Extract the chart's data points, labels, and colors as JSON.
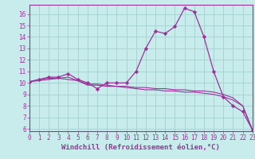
{
  "xlabel": "Windchill (Refroidissement éolien,°C)",
  "bg_color": "#c8ecec",
  "grid_color": "#aad4d4",
  "line_color": "#993399",
  "marker_color": "#993399",
  "xmin": 0,
  "xmax": 23,
  "ymin": 5.8,
  "ymax": 16.8,
  "series": [
    {
      "x": [
        0,
        1,
        2,
        3,
        4,
        5,
        6,
        7,
        8,
        9,
        10,
        11,
        12,
        13,
        14,
        15,
        16,
        17,
        18,
        19,
        20,
        21,
        22,
        23
      ],
      "y": [
        10.1,
        10.3,
        10.5,
        10.5,
        10.8,
        10.3,
        10.0,
        9.5,
        10.0,
        10.0,
        10.0,
        11.0,
        13.0,
        14.5,
        14.3,
        14.9,
        16.5,
        16.2,
        14.0,
        11.0,
        8.8,
        8.0,
        7.5,
        5.9
      ],
      "has_markers": true
    },
    {
      "x": [
        0,
        1,
        2,
        3,
        4,
        5,
        6,
        7,
        8,
        9,
        10,
        11,
        12,
        13,
        14,
        15,
        16,
        17,
        18,
        19,
        20,
        21,
        22,
        23
      ],
      "y": [
        10.1,
        10.3,
        10.4,
        10.4,
        10.3,
        10.2,
        9.9,
        9.9,
        9.8,
        9.7,
        9.6,
        9.5,
        9.4,
        9.4,
        9.3,
        9.3,
        9.2,
        9.2,
        9.1,
        9.0,
        8.8,
        8.5,
        8.0,
        5.9
      ],
      "has_markers": false
    },
    {
      "x": [
        0,
        1,
        2,
        3,
        4,
        5,
        6,
        7,
        8,
        9,
        10,
        11,
        12,
        13,
        14,
        15,
        16,
        17,
        18,
        19,
        20,
        21,
        22,
        23
      ],
      "y": [
        10.1,
        10.2,
        10.3,
        10.4,
        10.5,
        10.2,
        9.8,
        9.8,
        9.7,
        9.7,
        9.7,
        9.6,
        9.6,
        9.5,
        9.5,
        9.4,
        9.4,
        9.3,
        9.3,
        9.2,
        9.0,
        8.7,
        8.0,
        5.9
      ],
      "has_markers": false
    }
  ],
  "yticks": [
    6,
    7,
    8,
    9,
    10,
    11,
    12,
    13,
    14,
    15,
    16
  ],
  "xticks": [
    0,
    1,
    2,
    3,
    4,
    5,
    6,
    7,
    8,
    9,
    10,
    11,
    12,
    13,
    14,
    15,
    16,
    17,
    18,
    19,
    20,
    21,
    22,
    23
  ],
  "tick_label_fontsize": 5.5,
  "xlabel_fontsize": 6.5
}
